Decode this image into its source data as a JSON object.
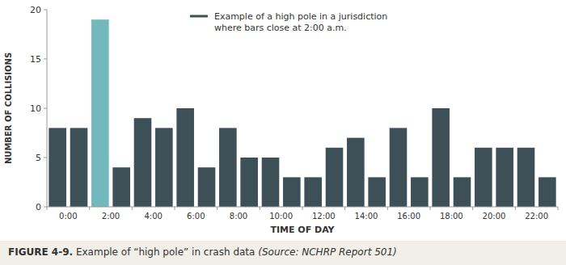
{
  "chart_data": {
    "type": "bar",
    "categories": [
      "0:00",
      null,
      "2:00",
      null,
      "4:00",
      null,
      "6:00",
      null,
      "8:00",
      null,
      "10:00",
      null,
      "12:00",
      null,
      "14:00",
      null,
      "16:00",
      null,
      "18:00",
      null,
      "20:00",
      null,
      "22:00",
      null
    ],
    "series": [
      {
        "name": "Example of a high pole in a jurisdiction\nwhere bars close at 2:00 a.m.",
        "color": "#3d4f57",
        "colors": [
          "#3d4f57",
          "#3d4f57",
          "#72b8bd",
          "#3d4f57",
          "#3d4f57",
          "#3d4f57",
          "#3d4f57",
          "#3d4f57",
          "#3d4f57",
          "#3d4f57",
          "#3d4f57",
          "#3d4f57",
          "#3d4f57",
          "#3d4f57",
          "#3d4f57",
          "#3d4f57",
          "#3d4f57",
          "#3d4f57",
          "#3d4f57",
          "#3d4f57",
          "#3d4f57",
          "#3d4f57",
          "#3d4f57",
          "#3d4f57"
        ],
        "values": [
          8,
          8,
          19,
          4,
          9,
          8,
          10,
          4,
          8,
          5,
          5,
          3,
          3,
          6,
          7,
          3,
          8,
          3,
          10,
          3,
          6,
          6,
          6,
          3
        ]
      }
    ],
    "x_label": "TIME OF DAY",
    "y_label": "NUMBER OF COLLISIONS",
    "ylim": [
      0,
      20
    ],
    "yticks": [
      0,
      5,
      10,
      15,
      20
    ],
    "grid": false,
    "legend": "top",
    "annotations": [
      "FIGURE 4-9.",
      " Example of “high pole” in crash data ",
      "(Source: NCHRP Report 501)"
    ]
  }
}
